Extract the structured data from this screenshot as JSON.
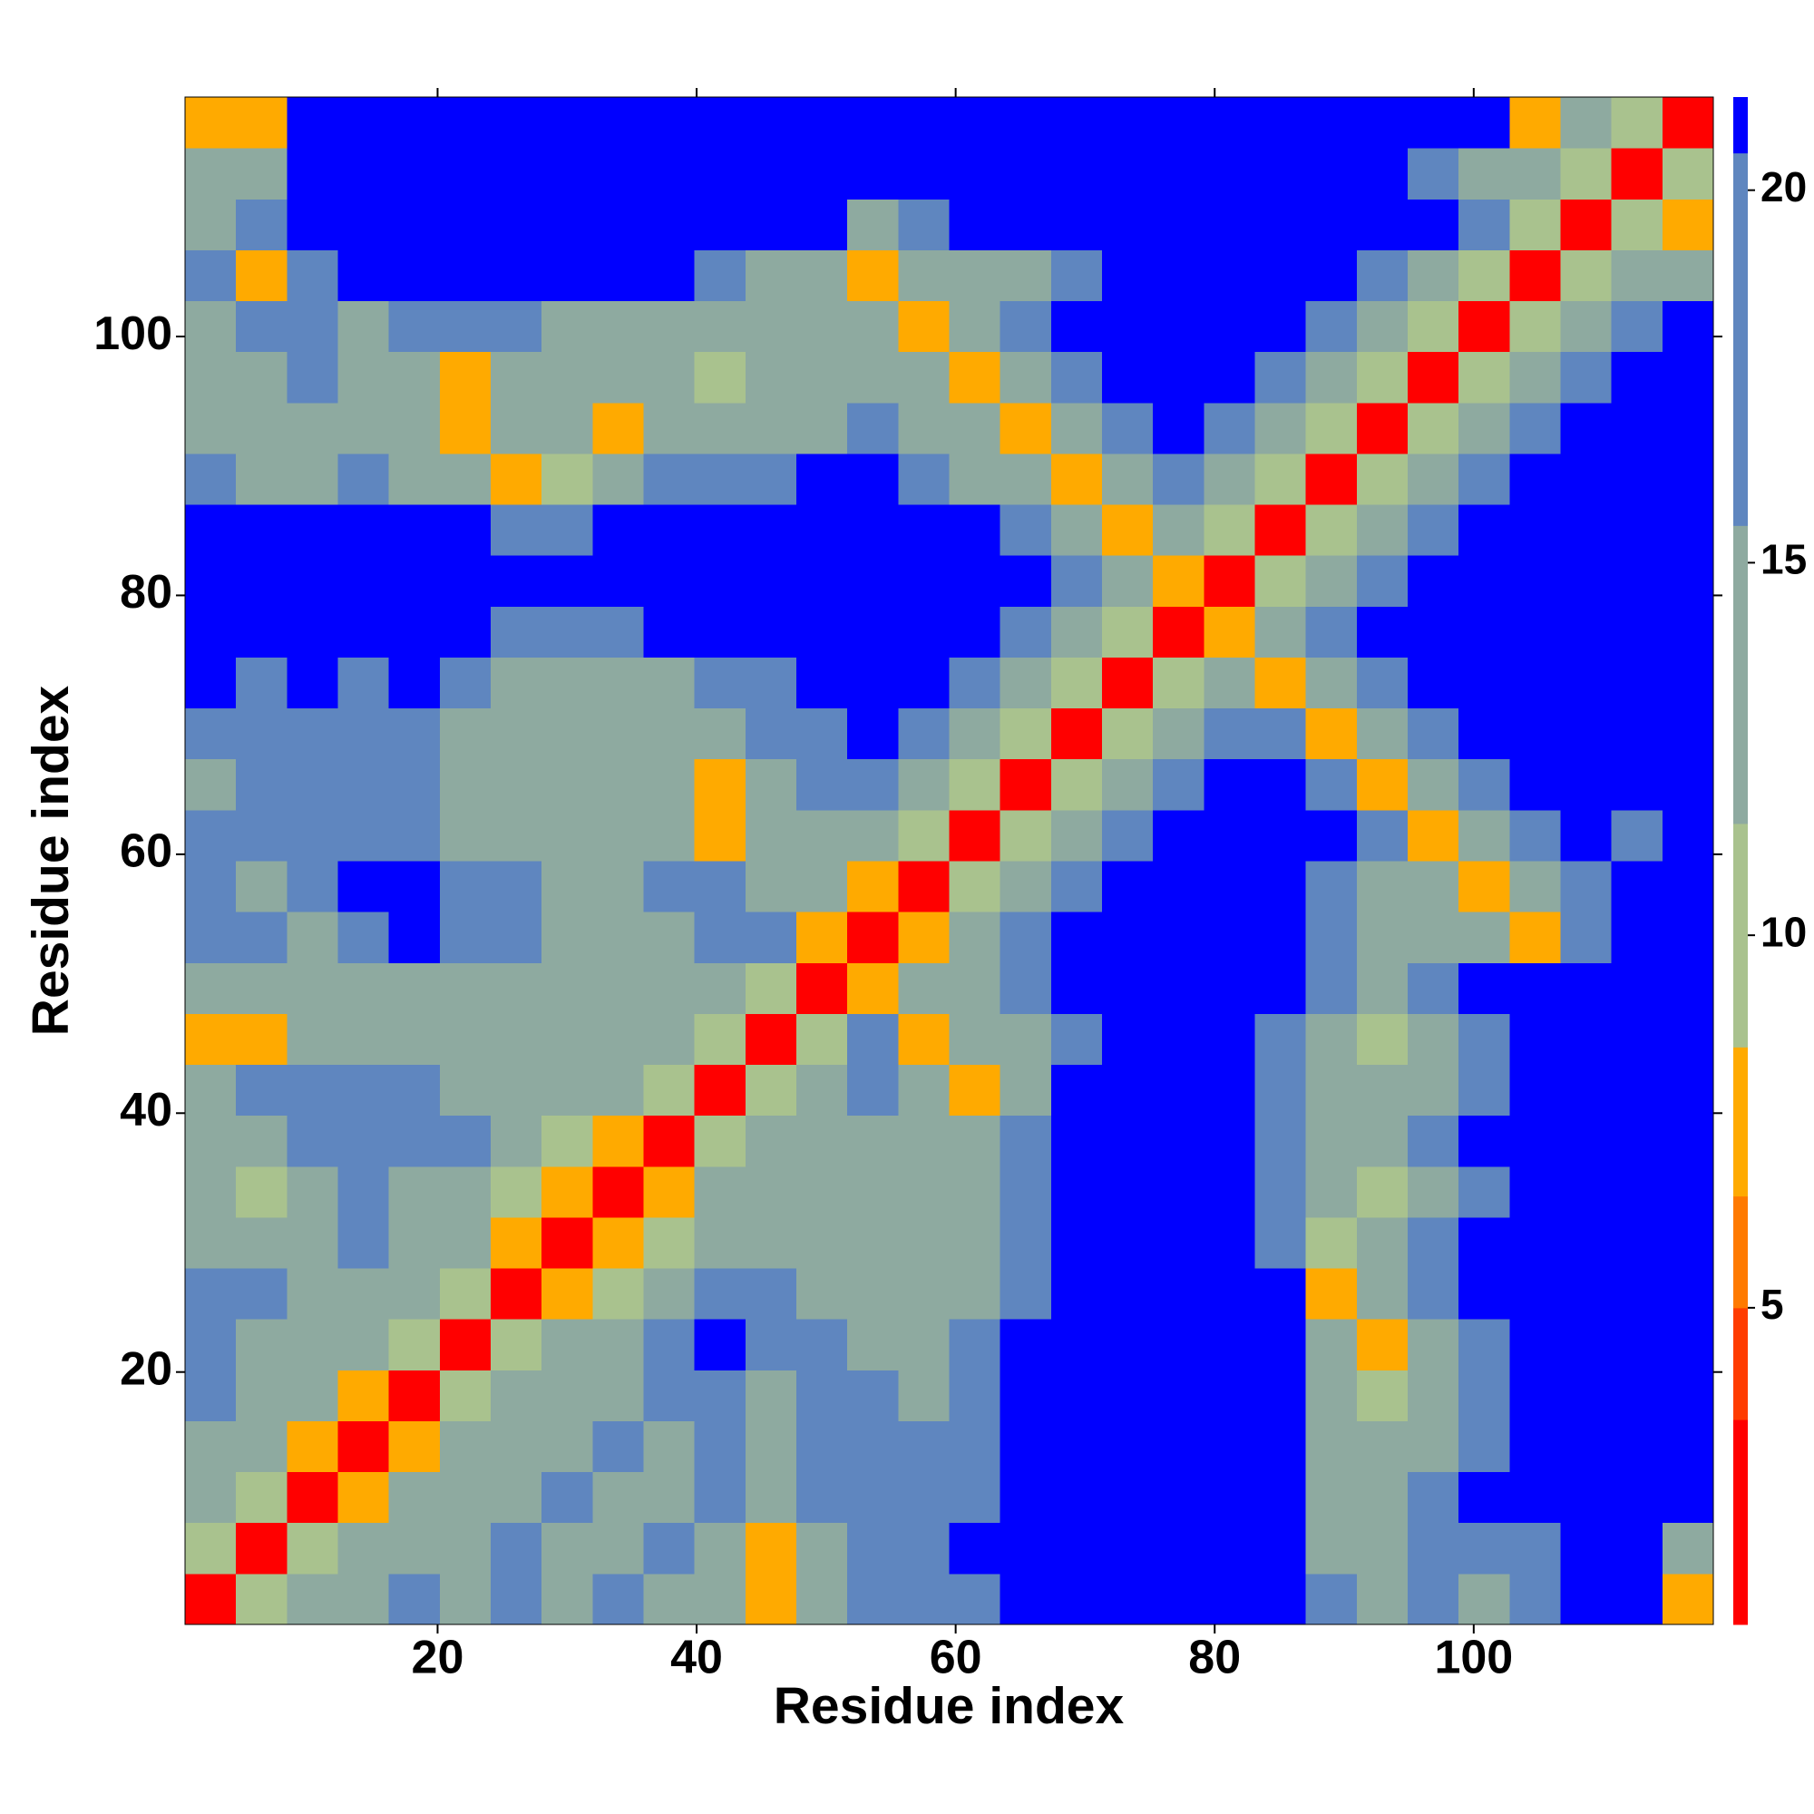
{
  "chart_data": {
    "type": "heatmap",
    "xlabel": "Residue index",
    "ylabel": "Residue index",
    "xlim": [
      0.5,
      118.5
    ],
    "ylim": [
      0.5,
      118.5
    ],
    "xticks": [
      20,
      40,
      60,
      80,
      100
    ],
    "yticks": [
      20,
      40,
      60,
      80,
      100
    ],
    "clim": [
      0.75,
      21.25
    ],
    "cticks": [
      5,
      10,
      15,
      20
    ],
    "clevels": [
      0.75,
      3.5,
      5,
      6.5,
      8.5,
      11.5,
      15.5,
      20.5,
      21.25
    ],
    "colors": [
      "#ff0000",
      "#ff3c00",
      "#ff7a00",
      "#ffaa00",
      "#a9c28e",
      "#8eaaa0",
      "#5f86bf",
      "#0000ff"
    ],
    "z": [
      [
        1,
        9,
        13,
        13,
        17,
        13,
        17,
        13,
        17,
        13,
        13,
        7,
        13,
        17,
        17,
        17,
        21,
        21,
        21,
        21,
        21,
        21,
        17,
        13,
        17,
        13,
        17,
        21,
        21,
        7
      ],
      [
        9,
        1,
        9,
        13,
        13,
        13,
        17,
        13,
        13,
        17,
        13,
        7,
        13,
        17,
        17,
        21,
        21,
        21,
        21,
        21,
        21,
        21,
        13,
        13,
        17,
        17,
        17,
        21,
        21,
        13
      ],
      [
        13,
        9,
        1,
        7,
        13,
        13,
        13,
        17,
        13,
        13,
        17,
        13,
        17,
        17,
        17,
        17,
        21,
        21,
        21,
        21,
        21,
        21,
        13,
        13,
        17,
        21,
        21,
        21,
        21,
        21
      ],
      [
        13,
        13,
        7,
        1,
        7,
        13,
        13,
        13,
        17,
        13,
        17,
        13,
        17,
        17,
        17,
        17,
        21,
        21,
        21,
        21,
        21,
        21,
        13,
        13,
        13,
        17,
        21,
        21,
        21,
        21
      ],
      [
        17,
        13,
        13,
        7,
        1,
        9,
        13,
        13,
        13,
        17,
        17,
        13,
        17,
        17,
        13,
        17,
        21,
        21,
        21,
        21,
        21,
        21,
        13,
        9,
        13,
        17,
        21,
        21,
        21,
        21
      ],
      [
        17,
        13,
        13,
        13,
        9,
        1,
        9,
        13,
        13,
        17,
        21,
        17,
        17,
        13,
        13,
        17,
        21,
        21,
        21,
        21,
        21,
        21,
        13,
        7,
        13,
        17,
        21,
        21,
        21,
        21
      ],
      [
        17,
        17,
        13,
        13,
        13,
        9,
        1,
        7,
        9,
        13,
        17,
        17,
        13,
        13,
        13,
        13,
        17,
        21,
        21,
        21,
        21,
        21,
        7,
        13,
        17,
        21,
        21,
        21,
        21,
        21
      ],
      [
        13,
        13,
        13,
        17,
        13,
        13,
        7,
        1,
        7,
        9,
        13,
        13,
        13,
        13,
        13,
        13,
        17,
        21,
        21,
        21,
        21,
        17,
        9,
        13,
        17,
        21,
        21,
        21,
        21,
        21
      ],
      [
        13,
        9,
        13,
        17,
        13,
        13,
        9,
        7,
        1,
        7,
        13,
        13,
        13,
        13,
        13,
        13,
        17,
        21,
        21,
        21,
        21,
        17,
        13,
        9,
        13,
        17,
        21,
        21,
        21,
        21
      ],
      [
        13,
        13,
        17,
        17,
        17,
        17,
        13,
        9,
        7,
        1,
        9,
        13,
        13,
        13,
        13,
        13,
        17,
        21,
        21,
        21,
        21,
        17,
        13,
        13,
        17,
        21,
        21,
        21,
        21,
        21
      ],
      [
        13,
        17,
        17,
        17,
        17,
        13,
        13,
        13,
        13,
        9,
        1,
        9,
        13,
        17,
        13,
        7,
        13,
        21,
        21,
        21,
        21,
        17,
        13,
        13,
        13,
        17,
        21,
        21,
        21,
        21
      ],
      [
        7,
        7,
        13,
        13,
        13,
        13,
        13,
        13,
        13,
        13,
        9,
        1,
        9,
        17,
        7,
        13,
        13,
        17,
        21,
        21,
        21,
        17,
        13,
        9,
        13,
        17,
        21,
        21,
        21,
        21
      ],
      [
        13,
        13,
        13,
        13,
        13,
        13,
        13,
        13,
        13,
        13,
        13,
        9,
        1,
        7,
        13,
        13,
        17,
        21,
        21,
        21,
        21,
        21,
        17,
        13,
        17,
        21,
        21,
        21,
        21,
        21
      ],
      [
        17,
        17,
        13,
        17,
        21,
        17,
        17,
        13,
        13,
        13,
        17,
        17,
        7,
        1,
        7,
        13,
        17,
        21,
        21,
        21,
        21,
        21,
        17,
        13,
        13,
        13,
        7,
        17,
        21,
        21
      ],
      [
        17,
        13,
        17,
        21,
        21,
        17,
        17,
        13,
        13,
        17,
        17,
        13,
        13,
        7,
        1,
        9,
        13,
        17,
        21,
        21,
        21,
        21,
        17,
        13,
        13,
        7,
        13,
        17,
        21,
        21
      ],
      [
        17,
        17,
        17,
        17,
        17,
        13,
        13,
        13,
        13,
        13,
        7,
        13,
        13,
        13,
        9,
        1,
        9,
        13,
        17,
        21,
        21,
        21,
        21,
        17,
        7,
        13,
        17,
        21,
        17,
        21
      ],
      [
        13,
        17,
        17,
        17,
        17,
        13,
        13,
        13,
        13,
        13,
        7,
        13,
        17,
        17,
        13,
        9,
        1,
        9,
        13,
        17,
        21,
        21,
        17,
        7,
        13,
        17,
        21,
        21,
        21,
        21
      ],
      [
        17,
        17,
        17,
        17,
        17,
        13,
        13,
        13,
        13,
        13,
        13,
        17,
        17,
        21,
        17,
        13,
        9,
        1,
        9,
        13,
        17,
        17,
        7,
        13,
        17,
        21,
        21,
        21,
        21,
        21
      ],
      [
        21,
        17,
        21,
        17,
        21,
        17,
        13,
        13,
        13,
        13,
        17,
        17,
        21,
        21,
        21,
        17,
        13,
        9,
        1,
        9,
        13,
        7,
        13,
        17,
        21,
        21,
        21,
        21,
        21,
        21
      ],
      [
        21,
        21,
        21,
        21,
        21,
        21,
        17,
        17,
        17,
        21,
        21,
        21,
        21,
        21,
        21,
        21,
        17,
        13,
        9,
        1,
        7,
        13,
        17,
        21,
        21,
        21,
        21,
        21,
        21,
        21
      ],
      [
        21,
        21,
        21,
        21,
        21,
        21,
        21,
        21,
        21,
        21,
        21,
        21,
        21,
        21,
        21,
        21,
        21,
        17,
        13,
        7,
        1,
        9,
        13,
        17,
        21,
        21,
        21,
        21,
        21,
        21
      ],
      [
        21,
        21,
        21,
        21,
        21,
        21,
        17,
        17,
        21,
        21,
        21,
        21,
        21,
        21,
        21,
        21,
        17,
        13,
        7,
        13,
        9,
        1,
        9,
        13,
        17,
        21,
        21,
        21,
        21,
        21
      ],
      [
        17,
        13,
        13,
        17,
        13,
        13,
        7,
        9,
        13,
        17,
        17,
        17,
        21,
        21,
        17,
        13,
        13,
        7,
        13,
        17,
        13,
        9,
        1,
        9,
        13,
        17,
        21,
        21,
        21,
        21
      ],
      [
        13,
        13,
        13,
        13,
        13,
        7,
        13,
        13,
        7,
        13,
        13,
        13,
        13,
        17,
        13,
        13,
        7,
        13,
        17,
        21,
        17,
        13,
        9,
        1,
        9,
        13,
        17,
        21,
        21,
        21
      ],
      [
        13,
        13,
        17,
        13,
        13,
        7,
        13,
        13,
        13,
        13,
        9,
        13,
        13,
        13,
        13,
        7,
        13,
        17,
        21,
        21,
        21,
        17,
        13,
        9,
        1,
        9,
        13,
        17,
        21,
        21
      ],
      [
        13,
        17,
        17,
        13,
        17,
        17,
        17,
        13,
        13,
        13,
        13,
        13,
        13,
        13,
        7,
        13,
        17,
        21,
        21,
        21,
        21,
        21,
        17,
        13,
        9,
        1,
        9,
        13,
        17,
        21
      ],
      [
        17,
        7,
        17,
        21,
        21,
        21,
        21,
        21,
        21,
        21,
        17,
        13,
        13,
        7,
        13,
        13,
        13,
        17,
        21,
        21,
        21,
        21,
        21,
        17,
        13,
        9,
        1,
        9,
        13,
        13
      ],
      [
        13,
        17,
        21,
        21,
        21,
        21,
        21,
        21,
        21,
        21,
        21,
        21,
        21,
        13,
        17,
        21,
        21,
        21,
        21,
        21,
        21,
        21,
        21,
        21,
        21,
        17,
        9,
        1,
        9,
        7
      ],
      [
        13,
        13,
        21,
        21,
        21,
        21,
        21,
        21,
        21,
        21,
        21,
        21,
        21,
        21,
        21,
        21,
        21,
        21,
        21,
        21,
        21,
        21,
        21,
        21,
        17,
        13,
        13,
        9,
        1,
        9
      ],
      [
        7,
        7,
        21,
        21,
        21,
        21,
        21,
        21,
        21,
        21,
        21,
        21,
        21,
        21,
        21,
        21,
        21,
        21,
        21,
        21,
        21,
        21,
        21,
        21,
        21,
        21,
        7,
        13,
        9,
        1
      ]
    ]
  }
}
